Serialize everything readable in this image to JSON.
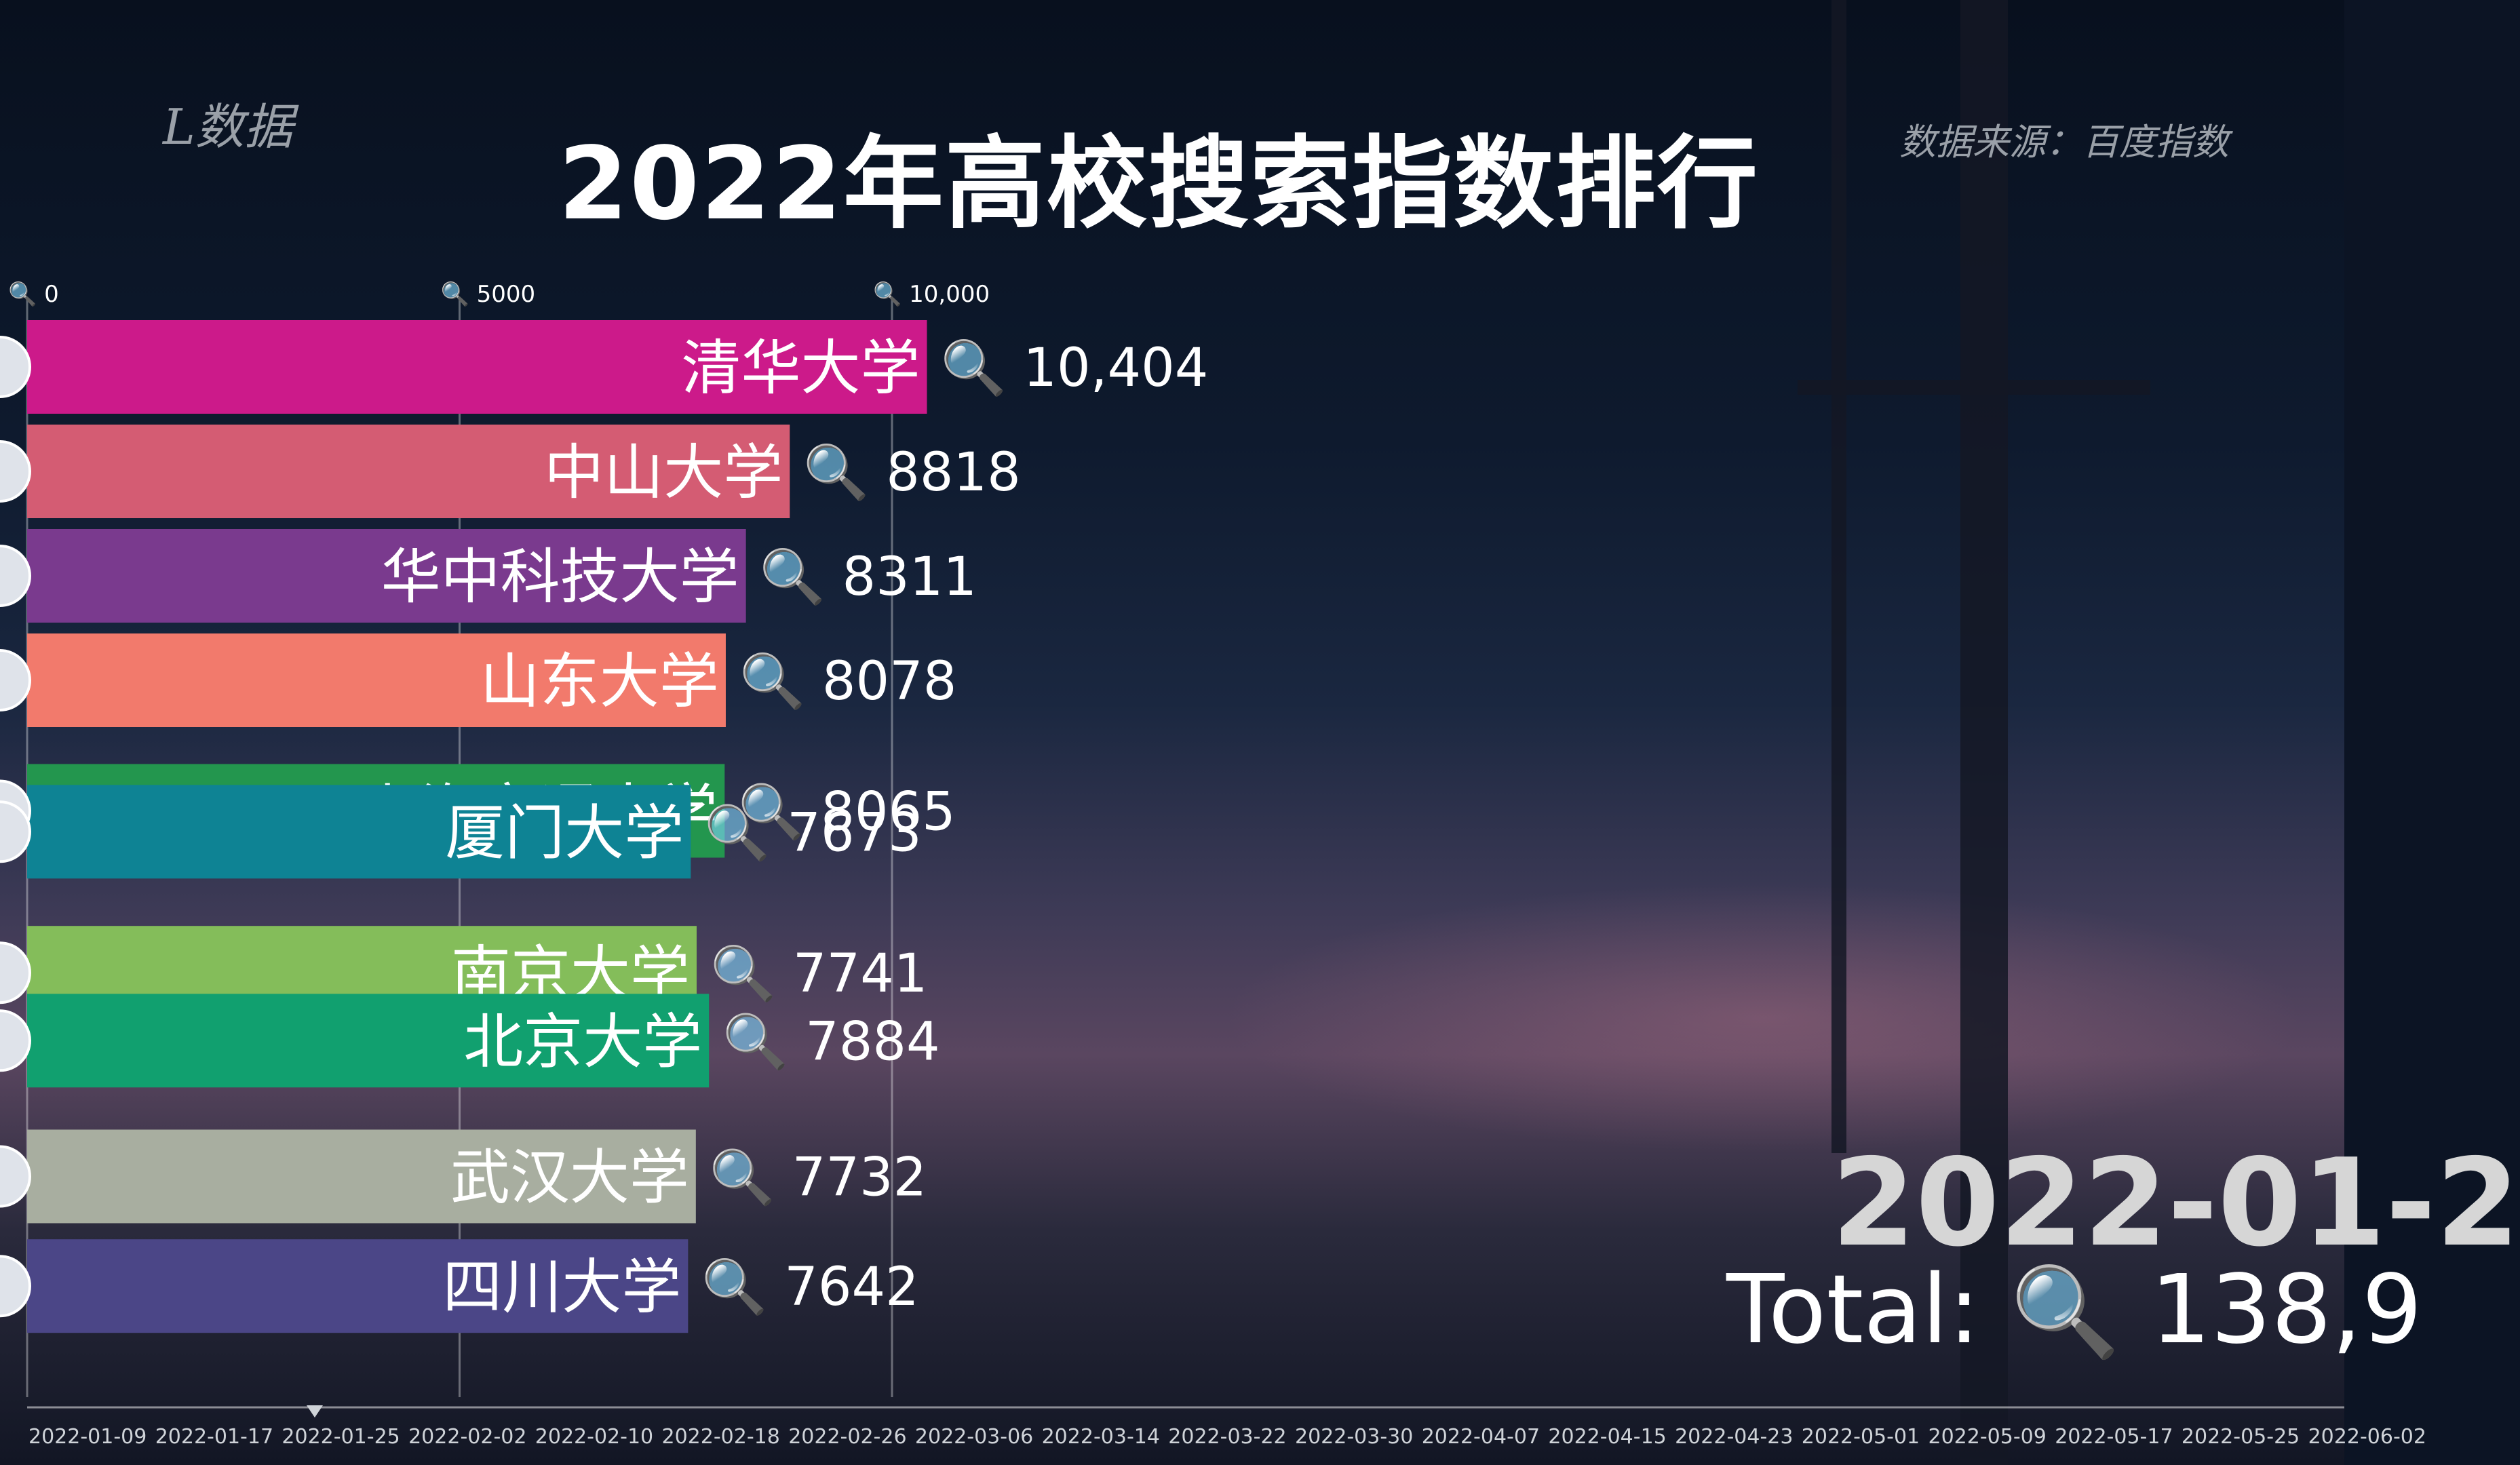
{
  "header": {
    "brand": "L数据",
    "title": "2022年高校搜索指数排行",
    "source": "数据来源：百度指数"
  },
  "display": {
    "current_date": "2022-01-2",
    "total_label": "Total:",
    "total_value": "138,9",
    "magnifier": "🔍"
  },
  "colors": {
    "清华大学": "#cc1a8a",
    "中山大学": "#d45c73",
    "华中科技大学": "#7a3a8e",
    "山东大学": "#f27a6c",
    "上海交通大学": "#23964e",
    "厦门大学": "#0e8394",
    "南京大学": "#84bd5a",
    "北京大学": "#11a06f",
    "武汉大学": "#a8aea0",
    "四川大学": "#4b4687"
  },
  "chart_data": {
    "type": "bar",
    "orientation": "horizontal",
    "title": "2022年高校搜索指数排行",
    "xlim": [
      0,
      12000
    ],
    "x_ticks": [
      {
        "value": 0,
        "label": "0"
      },
      {
        "value": 5000,
        "label": "5000"
      },
      {
        "value": 10000,
        "label": "10,000"
      }
    ],
    "grid": true,
    "bars": [
      {
        "label": "清华大学",
        "value": 10404,
        "value_label": "10,404",
        "rank": 1
      },
      {
        "label": "中山大学",
        "value": 8818,
        "value_label": "8818",
        "rank": 2
      },
      {
        "label": "华中科技大学",
        "value": 8311,
        "value_label": "8311",
        "rank": 3
      },
      {
        "label": "山东大学",
        "value": 8078,
        "value_label": "8078",
        "rank": 4
      },
      {
        "label": "上海交通大学",
        "value": 8065,
        "value_label": "8065",
        "rank": 5.25
      },
      {
        "label": "厦门大学",
        "value": 7673,
        "value_label": "7673",
        "rank": 5.45
      },
      {
        "label": "南京大学",
        "value": 7741,
        "value_label": "7741",
        "rank": 6.8
      },
      {
        "label": "北京大学",
        "value": 7884,
        "value_label": "7884",
        "rank": 7.45
      },
      {
        "label": "武汉大学",
        "value": 7732,
        "value_label": "7732",
        "rank": 8.75
      },
      {
        "label": "四川大学",
        "value": 7642,
        "value_label": "7642",
        "rank": 9.8
      }
    ],
    "timeline": [
      "2022-01-09",
      "2022-01-17",
      "2022-01-25",
      "2022-02-02",
      "2022-02-10",
      "2022-02-18",
      "2022-02-26",
      "2022-03-06",
      "2022-03-14",
      "2022-03-22",
      "2022-03-30",
      "2022-04-07",
      "2022-04-15",
      "2022-04-23",
      "2022-05-01",
      "2022-05-09",
      "2022-05-17",
      "2022-05-25",
      "2022-06-02"
    ]
  }
}
